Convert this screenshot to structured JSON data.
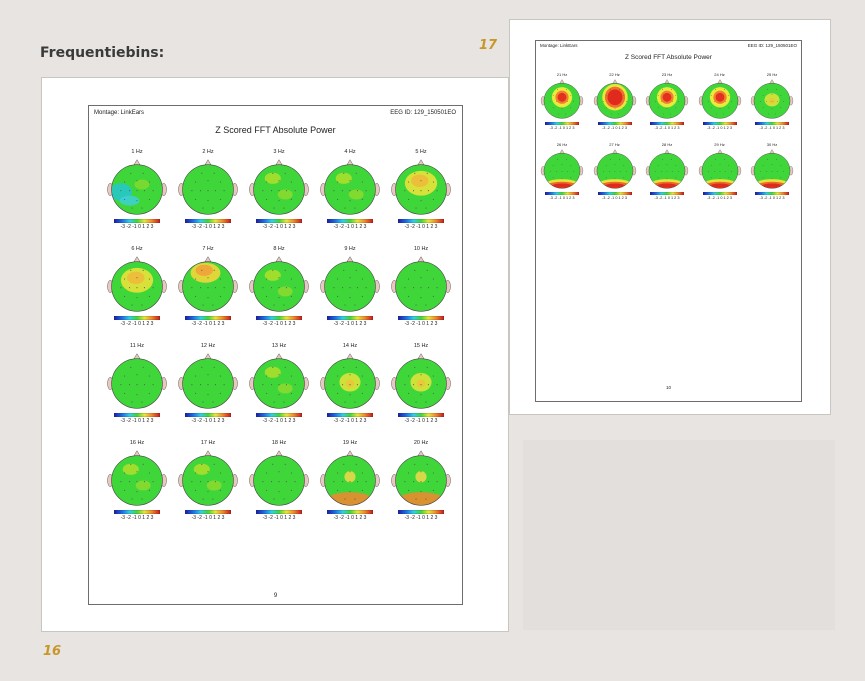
{
  "section_heading": "Frequentiebins:",
  "page_numbers": {
    "left": "16",
    "right": "17"
  },
  "colors": {
    "map_green": "#3fd63a",
    "head_outline": "#444444",
    "accent_page_number": "#c9962a"
  },
  "page_left": {
    "montage": "Montage:  LinkEars",
    "eeg_id": "EEG ID:  129_150501EO",
    "title": "Z Scored FFT Absolute Power",
    "footer_page": "9",
    "colorbar_ticks": "-3 -2 -1  0  1  2  3",
    "maps": [
      {
        "label": "1 Hz",
        "variant": "blue-left"
      },
      {
        "label": "2 Hz",
        "variant": "plain-green"
      },
      {
        "label": "3 Hz",
        "variant": "light-yellow"
      },
      {
        "label": "4 Hz",
        "variant": "light-yellow"
      },
      {
        "label": "5 Hz",
        "variant": "orange-yellow"
      },
      {
        "label": "6 Hz",
        "variant": "orange-yellow"
      },
      {
        "label": "7 Hz",
        "variant": "orange-top"
      },
      {
        "label": "8 Hz",
        "variant": "light-yellow"
      },
      {
        "label": "9 Hz",
        "variant": "plain-green"
      },
      {
        "label": "10 Hz",
        "variant": "plain-green"
      },
      {
        "label": "11 Hz",
        "variant": "plain-green"
      },
      {
        "label": "12 Hz",
        "variant": "plain-green"
      },
      {
        "label": "13 Hz",
        "variant": "light-yellow"
      },
      {
        "label": "14 Hz",
        "variant": "center-yellow"
      },
      {
        "label": "15 Hz",
        "variant": "center-yellow"
      },
      {
        "label": "16 Hz",
        "variant": "light-yellow"
      },
      {
        "label": "17 Hz",
        "variant": "light-yellow"
      },
      {
        "label": "18 Hz",
        "variant": "plain-green"
      },
      {
        "label": "19 Hz",
        "variant": "bottom-orange"
      },
      {
        "label": "20 Hz",
        "variant": "bottom-orange"
      }
    ]
  },
  "page_right": {
    "montage": "Montage:  LinkEars",
    "eeg_id": "EEG ID:  129_150501EO",
    "title": "Z Scored FFT Absolute Power",
    "footer_page": "10",
    "colorbar_ticks": "-3 -2 -1  0  1  2  3",
    "maps": [
      {
        "label": "21 Hz",
        "variant": "red-center"
      },
      {
        "label": "22 Hz",
        "variant": "red-big"
      },
      {
        "label": "23 Hz",
        "variant": "red-center"
      },
      {
        "label": "24 Hz",
        "variant": "red-center"
      },
      {
        "label": "25 Hz",
        "variant": "center-yellow"
      },
      {
        "label": "26 Hz",
        "variant": "bottom-red"
      },
      {
        "label": "27 Hz",
        "variant": "bottom-red"
      },
      {
        "label": "28 Hz",
        "variant": "bottom-red"
      },
      {
        "label": "29 Hz",
        "variant": "bottom-red"
      },
      {
        "label": "30 Hz",
        "variant": "bottom-red"
      }
    ]
  }
}
